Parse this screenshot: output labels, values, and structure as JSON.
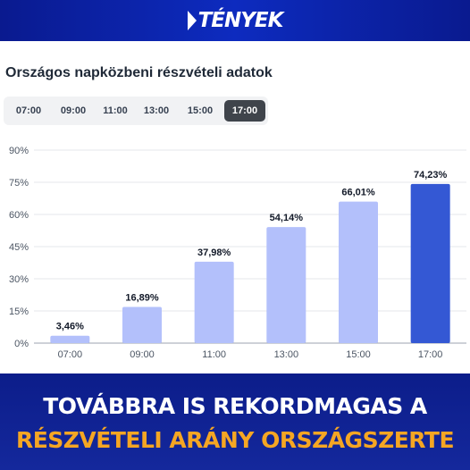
{
  "brand": {
    "logo_text": "TÉNYEK"
  },
  "panel": {
    "tabs": [
      {
        "label": "07:00",
        "active": false
      },
      {
        "label": "09:00",
        "active": false
      },
      {
        "label": "11:00",
        "active": false
      },
      {
        "label": "13:00",
        "active": false
      },
      {
        "label": "15:00",
        "active": false
      },
      {
        "label": "17:00",
        "active": true
      }
    ]
  },
  "chart_data": {
    "type": "bar",
    "title": "Országos napközbeni részvételi adatok",
    "categories": [
      "07:00",
      "09:00",
      "11:00",
      "13:00",
      "15:00",
      "17:00"
    ],
    "values": [
      3.46,
      16.89,
      37.98,
      54.14,
      66.01,
      74.23
    ],
    "data_labels": [
      "3,46%",
      "16,89%",
      "37,98%",
      "54,14%",
      "66,01%",
      "74,23%"
    ],
    "ylim": [
      0,
      90
    ],
    "yticks": [
      0,
      15,
      30,
      45,
      60,
      75,
      90
    ],
    "ytick_labels": [
      "0%",
      "15%",
      "30%",
      "45%",
      "60%",
      "75%",
      "90%"
    ],
    "highlight_category": "17:00",
    "colors": {
      "bar": "#b3c0fb",
      "highlight": "#3458d4"
    },
    "grid": "horizontal"
  },
  "headline": {
    "line1": "TOVÁBBRA IS REKORDMAGAS A",
    "line2": "RÉSZVÉTELI ARÁNY ORSZÁGSZERTE"
  }
}
